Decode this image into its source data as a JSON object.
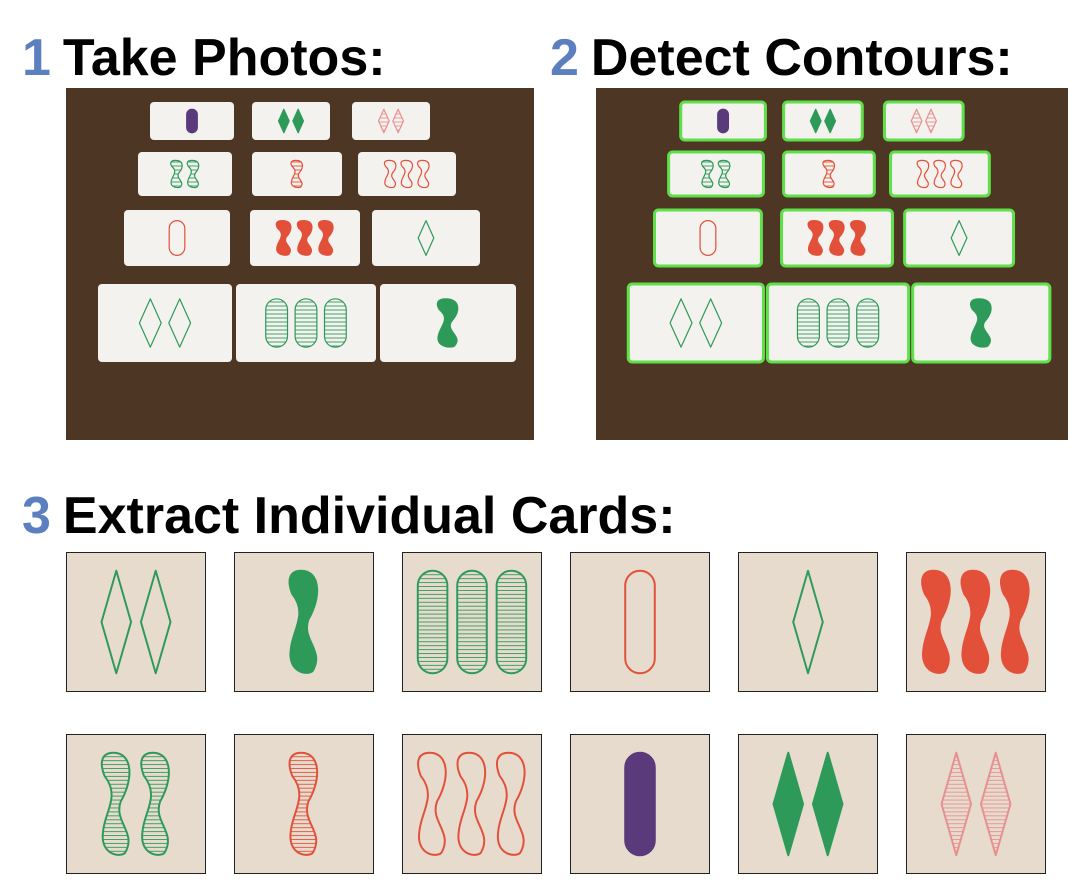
{
  "colors": {
    "accent": "#5b7fbf",
    "table": "#4e3624",
    "tile_bg": "#e6dbcd",
    "contour": "#5fe04a",
    "card_green": "#2e9a5a",
    "card_red": "#e3503a",
    "card_purple": "#5a3a7a",
    "card_pink": "#e89090"
  },
  "steps": [
    {
      "num": "1",
      "title": "Take Photos:"
    },
    {
      "num": "2",
      "title": "Detect Contours:"
    },
    {
      "num": "3",
      "title": "Extract Individual Cards:"
    }
  ],
  "photo_cards": [
    {
      "color": "purple",
      "shape": "oval",
      "fill": "solid",
      "count": 1
    },
    {
      "color": "green",
      "shape": "diamond",
      "fill": "solid",
      "count": 2
    },
    {
      "color": "pink",
      "shape": "diamond",
      "fill": "shaded",
      "count": 2
    },
    {
      "color": "green",
      "shape": "squiggle",
      "fill": "shaded",
      "count": 2
    },
    {
      "color": "red",
      "shape": "squiggle",
      "fill": "shaded",
      "count": 1
    },
    {
      "color": "red",
      "shape": "squiggle",
      "fill": "empty",
      "count": 3
    },
    {
      "color": "red",
      "shape": "oval",
      "fill": "empty",
      "count": 1
    },
    {
      "color": "red",
      "shape": "squiggle",
      "fill": "solid",
      "count": 3
    },
    {
      "color": "green",
      "shape": "diamond",
      "fill": "empty",
      "count": 1
    },
    {
      "color": "green",
      "shape": "diamond",
      "fill": "empty",
      "count": 2
    },
    {
      "color": "green",
      "shape": "oval",
      "fill": "shaded",
      "count": 3
    },
    {
      "color": "green",
      "shape": "squiggle",
      "fill": "solid",
      "count": 1
    }
  ],
  "extracted_cards": [
    {
      "color": "green",
      "shape": "diamond",
      "fill": "empty",
      "count": 2
    },
    {
      "color": "green",
      "shape": "squiggle",
      "fill": "solid",
      "count": 1
    },
    {
      "color": "green",
      "shape": "oval",
      "fill": "shaded",
      "count": 3
    },
    {
      "color": "red",
      "shape": "oval",
      "fill": "empty",
      "count": 1
    },
    {
      "color": "green",
      "shape": "diamond",
      "fill": "empty",
      "count": 1
    },
    {
      "color": "red",
      "shape": "squiggle",
      "fill": "solid",
      "count": 3
    },
    {
      "color": "green",
      "shape": "squiggle",
      "fill": "shaded",
      "count": 2
    },
    {
      "color": "red",
      "shape": "squiggle",
      "fill": "shaded",
      "count": 1
    },
    {
      "color": "red",
      "shape": "squiggle",
      "fill": "empty",
      "count": 3
    },
    {
      "color": "purple",
      "shape": "oval",
      "fill": "solid",
      "count": 1
    },
    {
      "color": "green",
      "shape": "diamond",
      "fill": "solid",
      "count": 2
    },
    {
      "color": "pink",
      "shape": "diamond",
      "fill": "shaded",
      "count": 2
    }
  ]
}
